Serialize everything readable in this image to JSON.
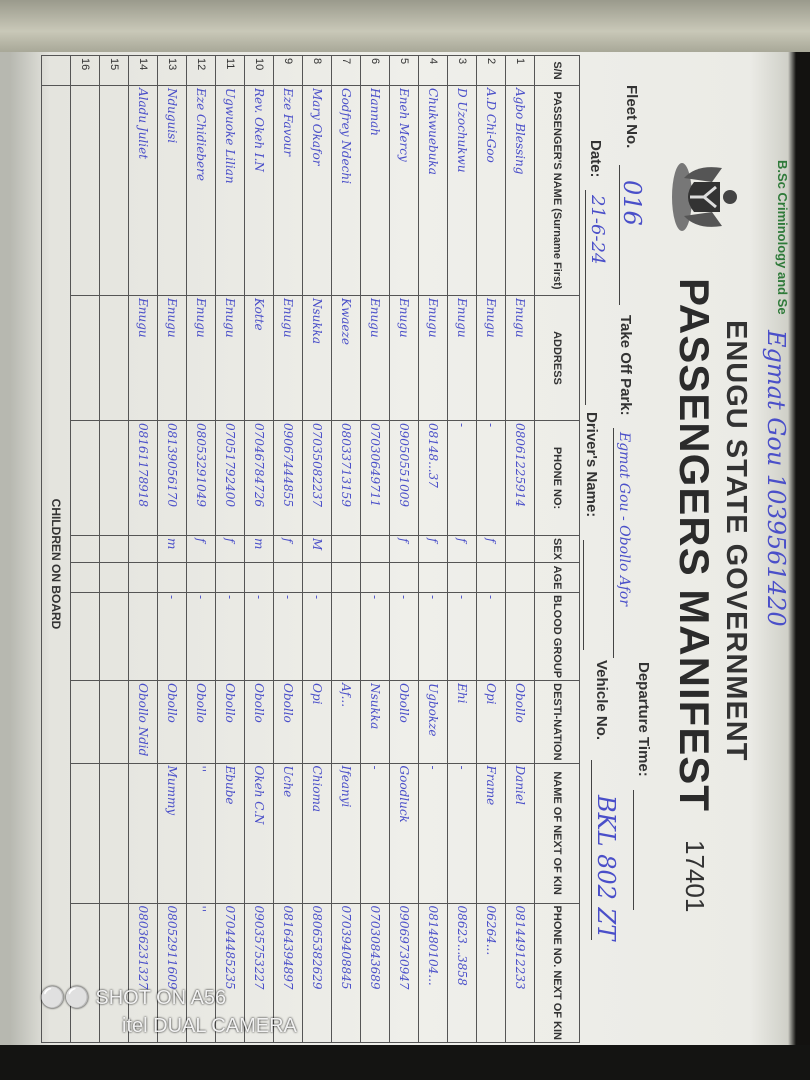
{
  "stamp": "B.Sc Criminology and Se",
  "top_note": "Egmat Gou 1039561420",
  "header": {
    "government": "ENUGU STATE GOVERNMENT",
    "title": "PASSENGERS MANIFEST",
    "serial": "17401"
  },
  "fields": {
    "fleet_label": "Fleet No.",
    "fleet_value": "016",
    "takeoff_label": "Take Off Park:",
    "takeoff_value": "Egmat Gou - Obollo Afor",
    "departure_label": "Departure Time:",
    "departure_value": "",
    "date_label": "Date:",
    "date_value": "21-6-24",
    "driver_label": "Driver's Name:",
    "driver_value": "",
    "vehicle_label": "Vehicle No.",
    "vehicle_value": "BKL 802 ZT"
  },
  "table": {
    "headers": [
      "S/N",
      "PASSENGER'S NAME (Surname First)",
      "ADDRESS",
      "PHONE NO:",
      "SEX",
      "AGE",
      "BLOOD GROUP",
      "DESTI-NATION",
      "NAME OF NEXT OF KIN",
      "PHONE NO. NEXT OF KIN"
    ],
    "rows": [
      [
        "1",
        "Agbo Blessing",
        "Enugu",
        "08061225914",
        "",
        "",
        "",
        "Obollo",
        "Daniel",
        "08144912233"
      ],
      [
        "2",
        "A.D Chi-Goo",
        "Enugu",
        "-",
        "f",
        "",
        "-",
        "Opi",
        "Frame",
        "06264..."
      ],
      [
        "3",
        "D Uzochukwu",
        "Enugu",
        "-",
        "f",
        "",
        "-",
        "Ehi",
        "-",
        "08623...3858"
      ],
      [
        "4",
        "Chukwuebuka",
        "Enugu",
        "08148...37",
        "f",
        "",
        "-",
        "Ugbokze",
        "-",
        "081480104..."
      ],
      [
        "5",
        "Eneh Mercy",
        "Enugu",
        "09050551009",
        "f",
        "",
        "-",
        "Obollo",
        "Goodluck",
        "09069730947"
      ],
      [
        "6",
        "Hannah",
        "Enugu",
        "07030649711",
        "",
        "",
        "-",
        "Nsukka",
        "-",
        "07030843689"
      ],
      [
        "7",
        "Godfrey Ndechi",
        "Kwaeze",
        "08033713159",
        "",
        "",
        "",
        "Af...",
        "Ifeanyi",
        "07039408845"
      ],
      [
        "8",
        "Mary Okafor",
        "Nsukka",
        "07035082237",
        "M",
        "",
        "-",
        "Opi",
        "Chioma",
        "08065382629"
      ],
      [
        "9",
        "Eze Favour",
        "Enugu",
        "09067444855",
        "f",
        "",
        "-",
        "Obollo",
        "Uche",
        "08164394897"
      ],
      [
        "10",
        "Rev. Okeh I.N",
        "Kotte",
        "07046784726",
        "m",
        "",
        "-",
        "Obollo",
        "Okeh C.N",
        "09035753227"
      ],
      [
        "11",
        "Ugwuoke Lilian",
        "Enugu",
        "07051792400",
        "f",
        "",
        "-",
        "Obollo",
        "Ebube",
        "07044485235"
      ],
      [
        "12",
        "Eze Chidiebere",
        "Enugu",
        "08053291049",
        "f",
        "",
        "-",
        "Obollo",
        "''",
        "''"
      ],
      [
        "13",
        "Nduguisi",
        "Enugu",
        "08139056170",
        "m",
        "",
        "-",
        "Obollo",
        "Mummy",
        "08052911609"
      ],
      [
        "14",
        "Aladu Juliet",
        "Enugu",
        "08161178918",
        "",
        "",
        "",
        "Obollo Ndid",
        "",
        "08036231327"
      ],
      [
        "15",
        "",
        "",
        "",
        "",
        "",
        "",
        "",
        "",
        ""
      ],
      [
        "16",
        "",
        "",
        "",
        "",
        "",
        "",
        "",
        "",
        ""
      ]
    ],
    "children_label": "CHILDREN ON BOARD"
  },
  "watermark": {
    "line1": "SHOT ON A56",
    "line2": "itel DUAL CAMERA"
  }
}
